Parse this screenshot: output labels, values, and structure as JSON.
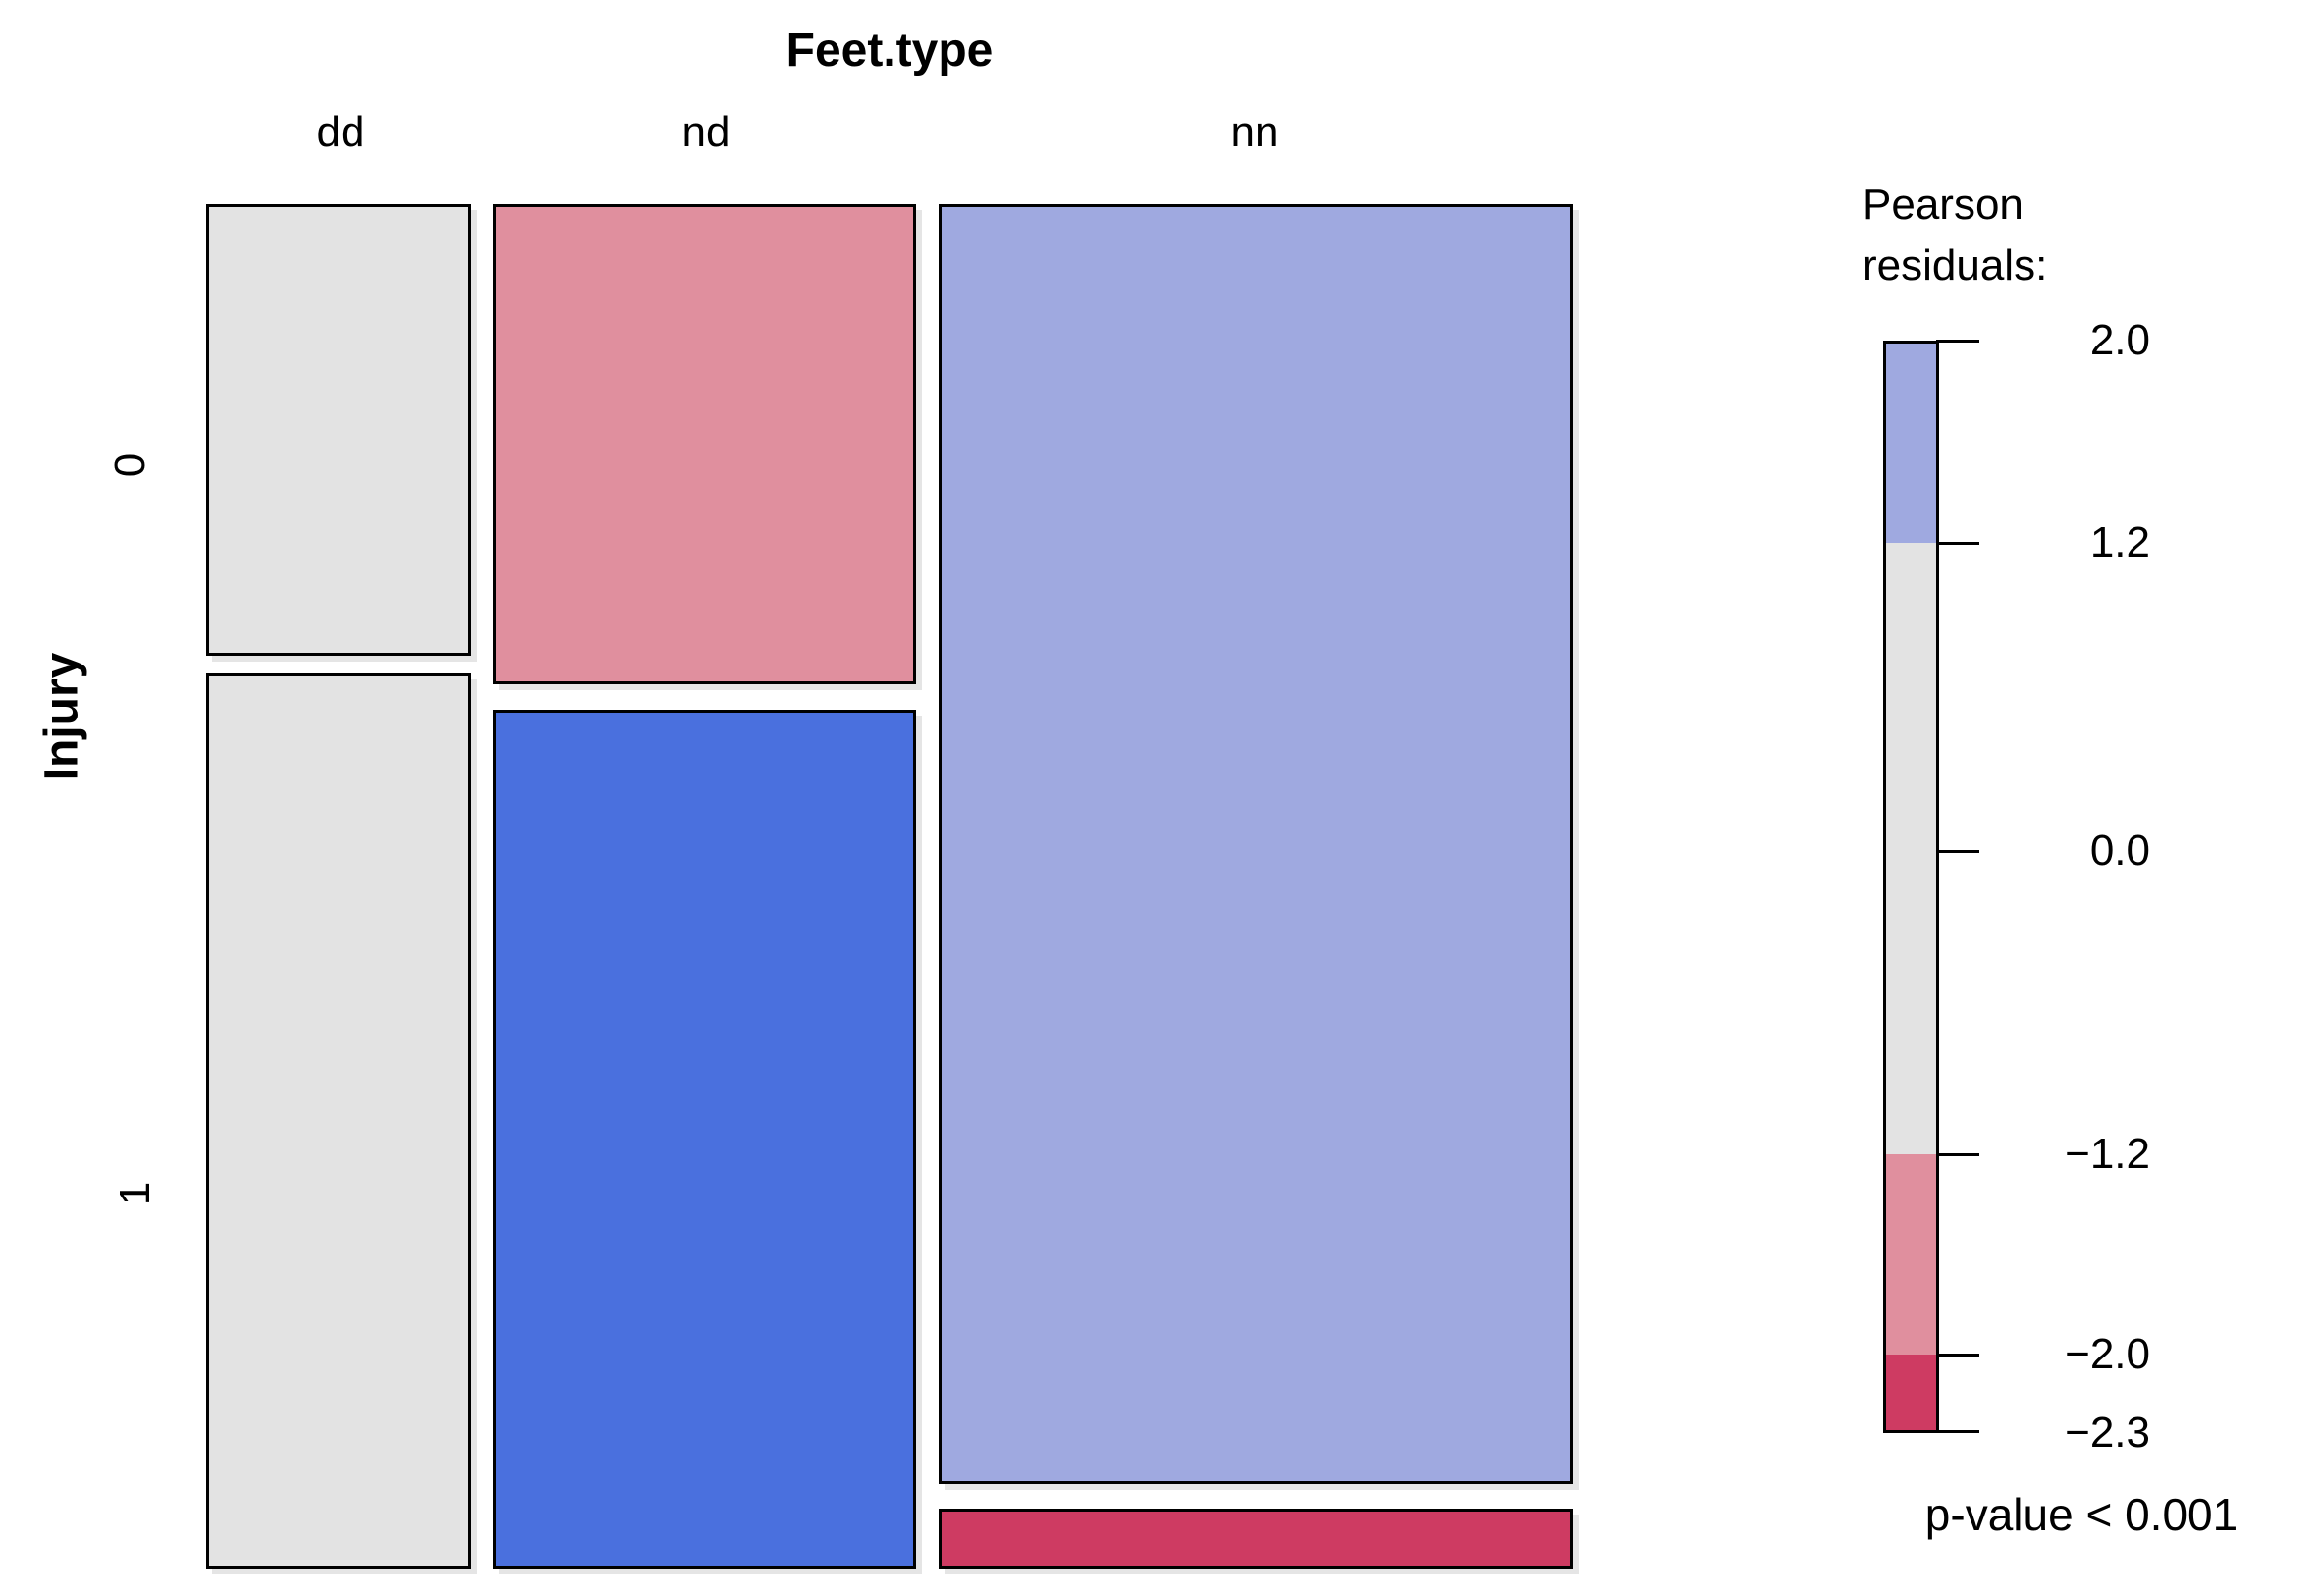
{
  "figure": {
    "title": "Feet.type",
    "y_axis_label": "Injury",
    "row_labels": [
      "0",
      "1"
    ],
    "col_labels": [
      "dd",
      "nd",
      "nn"
    ]
  },
  "legend": {
    "title_line1": "Pearson",
    "title_line2": "residuals:",
    "tick_labels": [
      "2.0",
      "1.2",
      "0.0",
      "−1.2",
      "−2.0",
      "−2.3"
    ],
    "p_value_label": "p-value < 0.001"
  },
  "colors": {
    "neutral_gray": "#E3E3E3",
    "pink_negative": "#E08F9E",
    "strong_blue_positive": "#4A70DE",
    "light_blue_positive": "#9FA9E0",
    "strong_red_negative": "#CE3B62",
    "tile_border": "#000000"
  },
  "chart_data": {
    "type": "mosaic",
    "title": "Feet.type",
    "x_variable": "Feet.type",
    "y_variable": "Injury",
    "x_categories": [
      "dd",
      "nd",
      "nn"
    ],
    "y_categories": [
      "0",
      "1"
    ],
    "column_width_proportions": [
      0.2,
      0.32,
      0.48
    ],
    "cells": [
      {
        "feet_type": "dd",
        "injury": "0",
        "row_proportion_within_column": 0.335,
        "shade": "neutral_gray",
        "residual_bin": "-1.2 to 1.2"
      },
      {
        "feet_type": "dd",
        "injury": "1",
        "row_proportion_within_column": 0.665,
        "shade": "neutral_gray",
        "residual_bin": "-1.2 to 1.2"
      },
      {
        "feet_type": "nd",
        "injury": "0",
        "row_proportion_within_column": 0.358,
        "shade": "pink_negative",
        "residual_bin": "-2.0 to -1.2"
      },
      {
        "feet_type": "nd",
        "injury": "1",
        "row_proportion_within_column": 0.642,
        "shade": "strong_blue_positive",
        "residual_bin": ">= 2.0"
      },
      {
        "feet_type": "nn",
        "injury": "0",
        "row_proportion_within_column": 0.955,
        "shade": "light_blue_positive",
        "residual_bin": "1.2 to 2.0"
      },
      {
        "feet_type": "nn",
        "injury": "1",
        "row_proportion_within_column": 0.045,
        "shade": "strong_red_negative",
        "residual_bin": "<= -2.0"
      }
    ],
    "legend": {
      "title": "Pearson residuals:",
      "ticks": [
        2.0,
        1.2,
        0.0,
        -1.2,
        -2.0,
        -2.3
      ],
      "range": [
        -2.3,
        2.0
      ],
      "segment_breaks": [
        2.0,
        1.2,
        -1.2,
        -2.0,
        -2.3
      ],
      "p_value": "p-value < 0.001",
      "position": "right"
    }
  }
}
